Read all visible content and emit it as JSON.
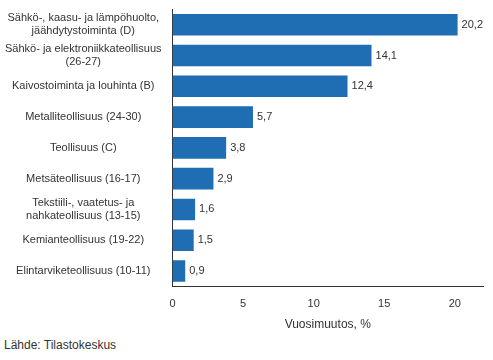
{
  "chart_data": {
    "type": "bar",
    "orientation": "horizontal",
    "categories": [
      "Sähkö-, kaasu- ja lämpöhuolto, jäähdytystoiminta (D)",
      "Sähkö- ja elektroniikkateollisuus (26-27)",
      "Kaivostoiminta ja louhinta (B)",
      "Metalliteollisuus (24-30)",
      "Teollisuus (C)",
      "Metsäteollisuus (16-17)",
      "Tekstiili-, vaatetus- ja nahkateollisuus (13-15)",
      "Kemianteollisuus (19-22)",
      "Elintarviketeollisuus (10-11)"
    ],
    "values": [
      20.2,
      14.1,
      12.4,
      5.7,
      3.8,
      2.9,
      1.6,
      1.5,
      0.9
    ],
    "value_labels": [
      "20,2",
      "14,1",
      "12,4",
      "5,7",
      "3,8",
      "2,9",
      "1,6",
      "1,5",
      "0,9"
    ],
    "data_labels": true,
    "color": "#1f6db3",
    "x_label": "Vuosimuutos, %",
    "xlim": [
      0,
      22
    ],
    "xticks": [
      0,
      5,
      10,
      15,
      20
    ],
    "grid": false,
    "source": "Lähde: Tilastokeskus"
  }
}
